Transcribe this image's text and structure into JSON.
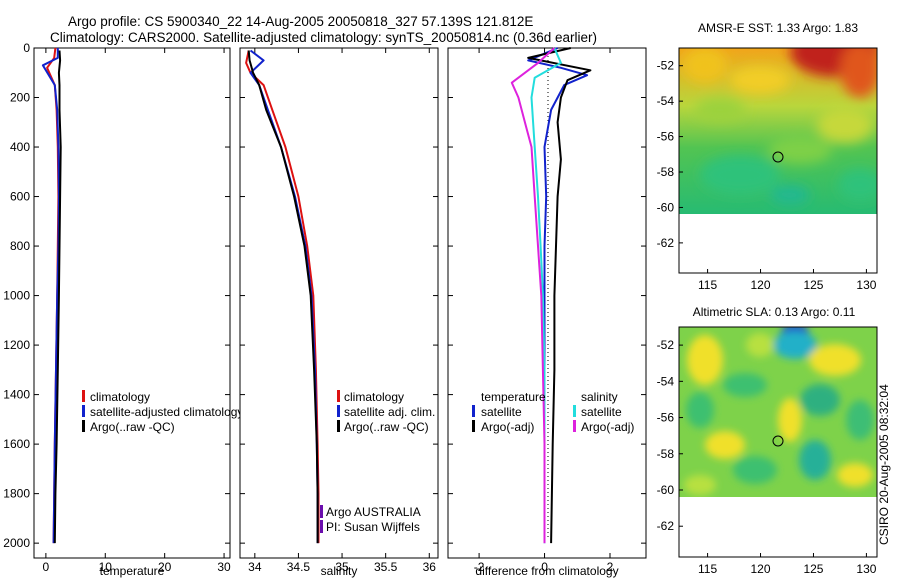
{
  "header": {
    "title_line1": "Argo profile: CS 5900340_22 14-Aug-2005 20050818_327 57.139S 121.812E",
    "title_line2": "Climatology: CARS2000. Satellite-adjusted climatology: synTS_20050814.nc (0.36d earlier)"
  },
  "colors": {
    "climatology": "#dd1111",
    "satellite": "#1122cc",
    "argo": "#000000",
    "sal_satellite": "#22dddd",
    "sal_argo": "#dd22dd",
    "agency": "#6a0dad"
  },
  "chart_data": [
    {
      "type": "line",
      "xlabel": "temperature",
      "ylabel": "",
      "xlim": [
        -2,
        31
      ],
      "ylim": [
        2060,
        0
      ],
      "xticks": [
        0,
        10,
        20,
        30
      ],
      "yticks": [
        0,
        200,
        400,
        600,
        800,
        1000,
        1200,
        1400,
        1600,
        1800,
        2000
      ],
      "legend": [
        "climatology",
        "satellite-adjusted climatology",
        "Argo(..raw -QC)"
      ],
      "series": [
        {
          "name": "climatology",
          "color": "#dd1111",
          "x": [
            1.6,
            1.4,
            0.2,
            1.5,
            1.8,
            2.0,
            2.1,
            2.0,
            1.9,
            1.7,
            1.5,
            1.4,
            1.3
          ],
          "y": [
            0,
            40,
            80,
            150,
            250,
            400,
            600,
            800,
            1000,
            1300,
            1600,
            1800,
            2000
          ]
        },
        {
          "name": "satellite-adjusted climatology",
          "color": "#1122cc",
          "x": [
            2.0,
            2.0,
            -0.5,
            1.5,
            1.9,
            2.1,
            2.2,
            2.1,
            1.9,
            1.7,
            1.5,
            1.4,
            1.3
          ],
          "y": [
            0,
            40,
            70,
            150,
            250,
            400,
            600,
            800,
            1000,
            1300,
            1600,
            1800,
            2000
          ]
        },
        {
          "name": "Argo(..raw -QC)",
          "color": "#000000",
          "x": [
            2.3,
            2.4,
            2.2,
            2.3,
            2.3,
            2.5,
            2.4,
            2.3,
            2.2,
            2.0,
            1.8,
            1.6,
            1.5
          ],
          "y": [
            10,
            50,
            100,
            150,
            250,
            400,
            600,
            800,
            1000,
            1300,
            1600,
            1800,
            2000
          ]
        }
      ]
    },
    {
      "type": "line",
      "xlabel": "salinity",
      "ylabel": "",
      "xlim": [
        33.83,
        36.1
      ],
      "ylim": [
        2060,
        0
      ],
      "xticks": [
        34,
        34.5,
        35,
        35.5,
        36
      ],
      "legend": [
        "climatology",
        "satellite adj. clim.",
        "Argo(..raw -QC)"
      ],
      "annotation": [
        "Argo AUSTRALIA",
        "PI: Susan Wijffels"
      ],
      "series": [
        {
          "name": "climatology",
          "color": "#dd1111",
          "x": [
            33.93,
            33.9,
            33.95,
            34.1,
            34.2,
            34.35,
            34.5,
            34.6,
            34.67,
            34.7,
            34.72,
            34.73,
            34.73
          ],
          "y": [
            10,
            60,
            100,
            150,
            250,
            400,
            600,
            800,
            1000,
            1300,
            1600,
            1800,
            2000
          ]
        },
        {
          "name": "satellite adj. clim.",
          "color": "#1122cc",
          "x": [
            33.95,
            34.1,
            33.95,
            34.05,
            34.15,
            34.3,
            34.46,
            34.58,
            34.65,
            34.69,
            34.71,
            34.72,
            34.72
          ],
          "y": [
            10,
            50,
            100,
            150,
            250,
            400,
            600,
            800,
            1000,
            1300,
            1600,
            1800,
            2000
          ]
        },
        {
          "name": "Argo(..raw -QC)",
          "color": "#000000",
          "x": [
            33.93,
            33.94,
            33.98,
            34.05,
            34.13,
            34.3,
            34.45,
            34.57,
            34.64,
            34.68,
            34.71,
            34.72,
            34.72
          ],
          "y": [
            10,
            50,
            100,
            150,
            250,
            400,
            600,
            800,
            1000,
            1300,
            1600,
            1800,
            2000
          ]
        }
      ]
    },
    {
      "type": "line",
      "xlabel": "difference from climatology",
      "ylabel": "",
      "xlim": [
        -2.95,
        3.1
      ],
      "ylim": [
        2060,
        0
      ],
      "xticks": [
        -2,
        0,
        2
      ],
      "legend": [
        "temperature",
        "satellite",
        "Argo(-adj)",
        "salinity",
        "satellite",
        "Argo(-adj)"
      ],
      "series": [
        {
          "name": "satellite",
          "group": "temperature",
          "color": "#1122cc",
          "x": [
            0.4,
            -0.5,
            0.5,
            1.3,
            0.6,
            0.2,
            0.0,
            0.05,
            0.0,
            0.0,
            0.0,
            0.0,
            0.0
          ],
          "y": [
            0,
            50,
            80,
            110,
            150,
            250,
            400,
            600,
            800,
            1000,
            1300,
            1600,
            2000
          ]
        },
        {
          "name": "Argo(-adj)",
          "group": "temperature",
          "color": "#000000",
          "x": [
            0.8,
            -0.5,
            1.4,
            0.7,
            0.5,
            0.4,
            0.5,
            0.4,
            0.35,
            0.3,
            0.3,
            0.25,
            0.2
          ],
          "y": [
            0,
            40,
            90,
            130,
            200,
            300,
            450,
            600,
            800,
            1000,
            1300,
            1600,
            2000
          ]
        },
        {
          "name": "satellite",
          "group": "salinity",
          "color": "#22dddd",
          "x": [
            0.3,
            0.5,
            -0.3,
            -0.4,
            -0.35,
            -0.3,
            -0.2,
            -0.12,
            -0.05,
            0.0,
            0.0,
            0.0,
            0.0
          ],
          "y": [
            0,
            60,
            120,
            200,
            300,
            400,
            600,
            800,
            1000,
            1300,
            1600,
            1800,
            2000
          ]
        },
        {
          "name": "Argo(-adj)",
          "group": "salinity",
          "color": "#dd22dd",
          "x": [
            0.3,
            -0.2,
            -1.0,
            -0.8,
            -0.6,
            -0.4,
            -0.3,
            -0.2,
            -0.1,
            -0.05,
            0.0,
            0.0,
            0.0
          ],
          "y": [
            0,
            60,
            140,
            200,
            300,
            400,
            600,
            800,
            1000,
            1300,
            1600,
            1800,
            2000
          ]
        }
      ]
    },
    {
      "type": "heatmap",
      "title": "AMSR-E SST: 1.33 Argo: 1.83",
      "xlim": [
        112.3,
        131.0
      ],
      "ylim": [
        -63.7,
        -51.0
      ],
      "xticks": [
        115,
        120,
        125,
        130
      ],
      "yticks": [
        -52,
        -54,
        -56,
        -58,
        -60,
        -62
      ],
      "data_extent_bottom": -60,
      "marker": {
        "lon": 121.8,
        "lat": -57.14
      }
    },
    {
      "type": "heatmap",
      "title": "Altimetric SLA: 0.13 Argo: 0.11",
      "xlim": [
        112.3,
        131.0
      ],
      "ylim": [
        -63.7,
        -51.0
      ],
      "xticks": [
        115,
        120,
        125,
        130
      ],
      "yticks": [
        -52,
        -54,
        -56,
        -58,
        -60,
        -62
      ],
      "data_extent_bottom": -60,
      "marker": {
        "lon": 121.8,
        "lat": -57.14
      }
    }
  ],
  "footer": {
    "stamp": "CSIRO 20-Aug-2005 08:32:04"
  }
}
